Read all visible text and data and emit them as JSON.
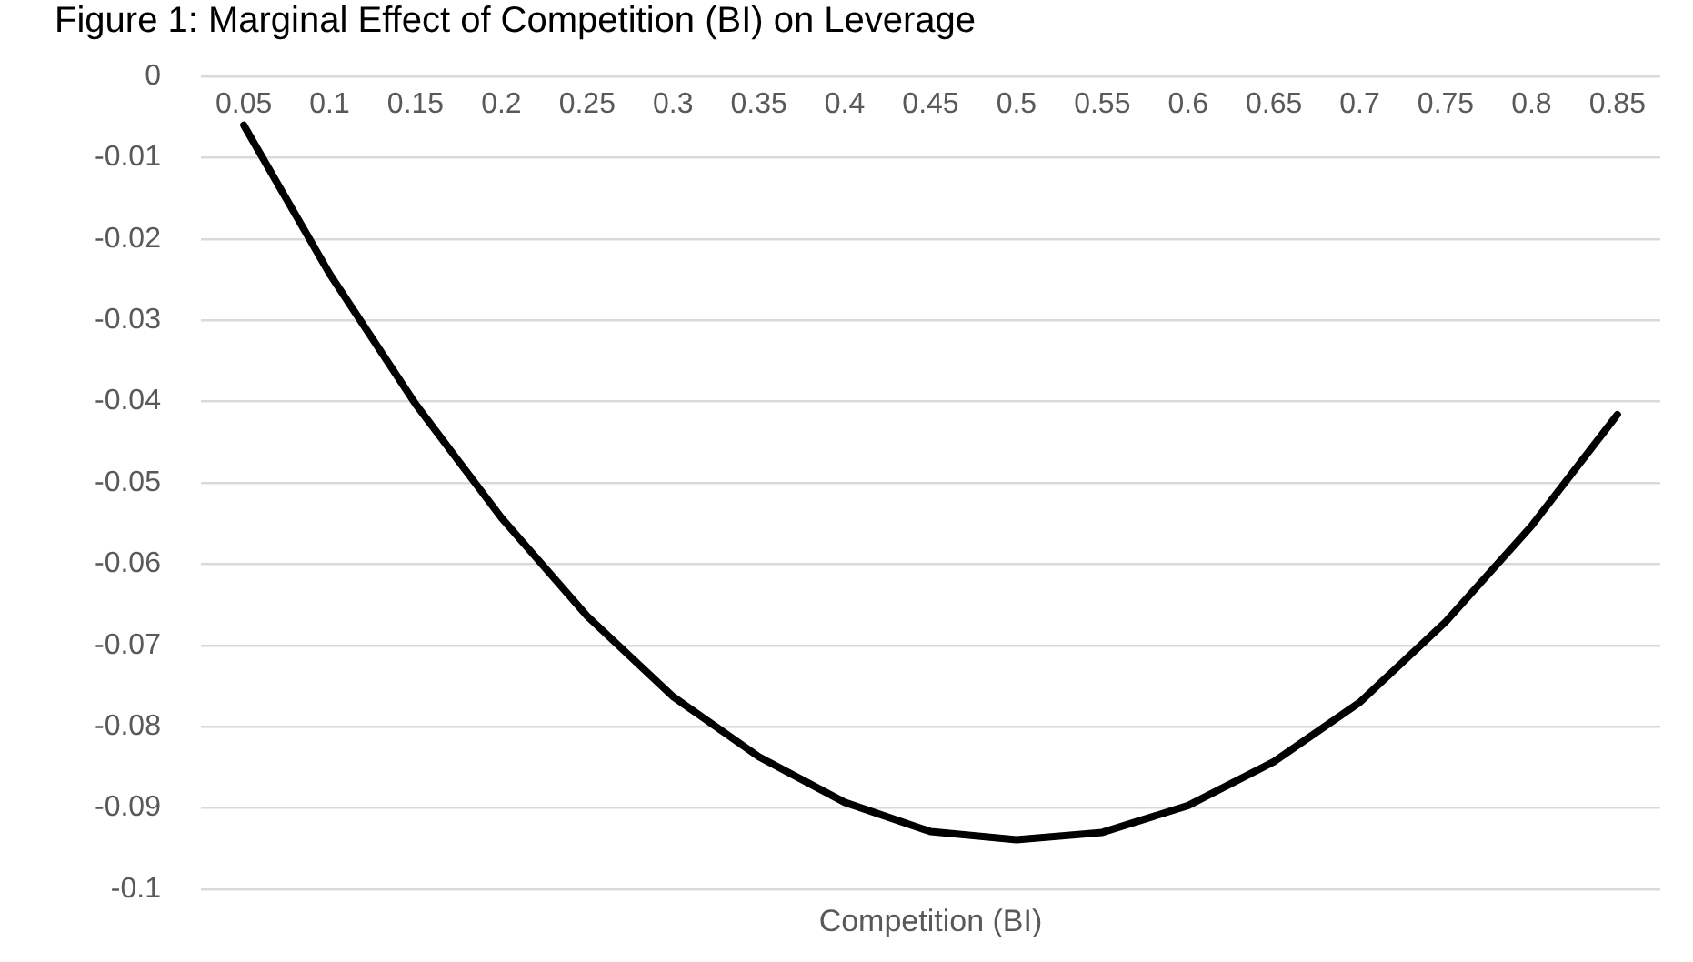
{
  "chart_data": {
    "type": "line",
    "title": "Figure 1: Marginal Effect of Competition (BI) on Leverage",
    "xlabel": "Competition (BI)",
    "categories": [
      "0.05",
      "0.1",
      "0.15",
      "0.2",
      "0.25",
      "0.3",
      "0.35",
      "0.4",
      "0.45",
      "0.5",
      "0.55",
      "0.6",
      "0.65",
      "0.7",
      "0.75",
      "0.8",
      "0.85"
    ],
    "series": [
      {
        "color": "#000000",
        "values": [
          -0.006,
          -0.0243,
          -0.0403,
          -0.0543,
          -0.0664,
          -0.0763,
          -0.0837,
          -0.0893,
          -0.0929,
          -0.0939,
          -0.093,
          -0.0897,
          -0.0843,
          -0.077,
          -0.0671,
          -0.0553,
          -0.0416
        ]
      }
    ],
    "ylim": [
      -0.1,
      0
    ],
    "yticks": [
      0,
      -0.01,
      -0.02,
      -0.03,
      -0.04,
      -0.05,
      -0.06,
      -0.07,
      -0.08,
      -0.09,
      -0.1
    ],
    "grid": "y",
    "legend": false,
    "marker": "none",
    "line_style": "solid"
  }
}
